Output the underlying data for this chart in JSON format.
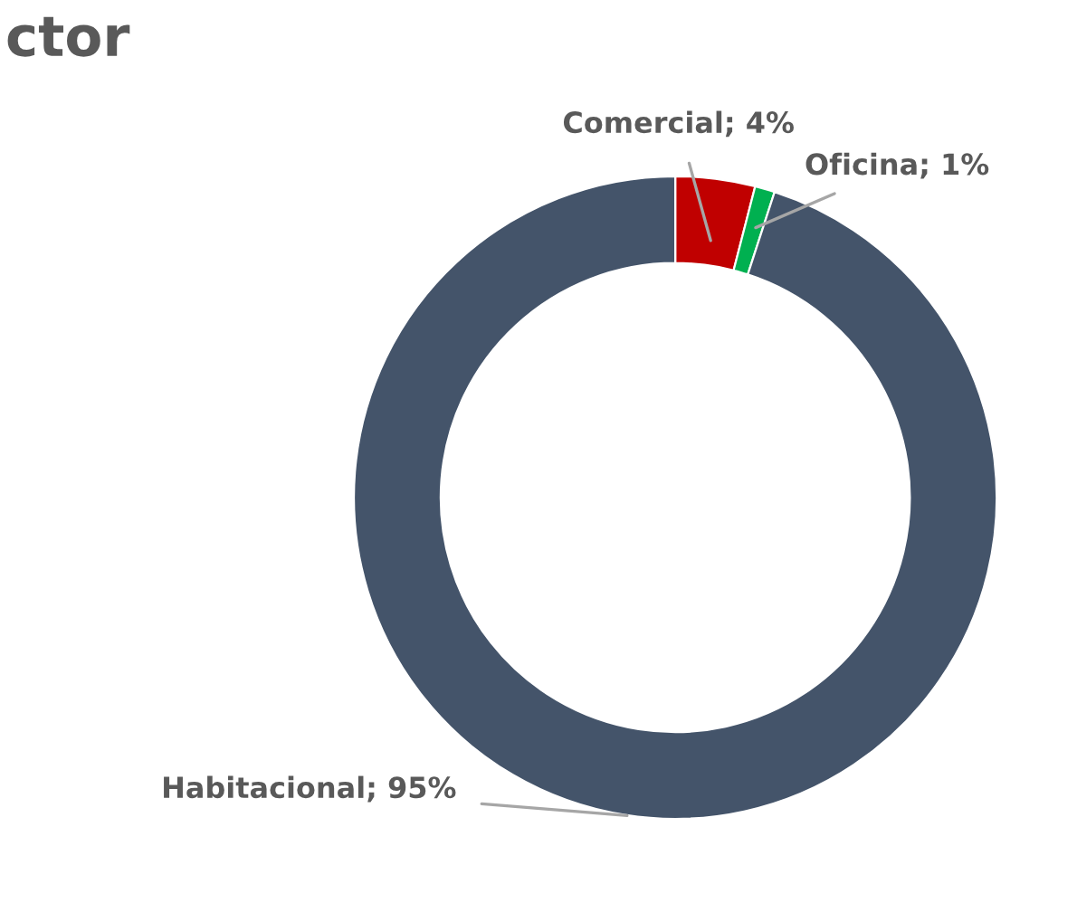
{
  "chart_data": {
    "type": "donut",
    "title": "ctor",
    "categories": [
      "Comercial",
      "Oficina",
      "Habitacional"
    ],
    "values": [
      4,
      1,
      95
    ],
    "value_labels": [
      "4%",
      "1%",
      "95%"
    ],
    "colors": [
      "#c00000",
      "#00b050",
      "#44546a"
    ],
    "legend": false
  }
}
